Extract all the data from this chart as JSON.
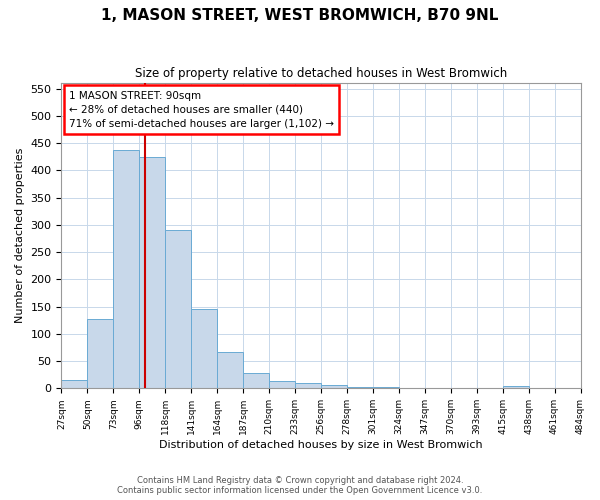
{
  "title": "1, MASON STREET, WEST BROMWICH, B70 9NL",
  "subtitle": "Size of property relative to detached houses in West Bromwich",
  "xlabel": "Distribution of detached houses by size in West Bromwich",
  "ylabel": "Number of detached properties",
  "footer_line1": "Contains HM Land Registry data © Crown copyright and database right 2024.",
  "footer_line2": "Contains public sector information licensed under the Open Government Licence v3.0.",
  "annotation_line1": "1 MASON STREET: 90sqm",
  "annotation_line2": "← 28% of detached houses are smaller (440)",
  "annotation_line3": "71% of semi-detached houses are larger (1,102) →",
  "bar_color": "#c8d8ea",
  "bar_edge_color": "#6aaad4",
  "grid_color": "#c8d8ea",
  "vline_color": "#cc0000",
  "bar_heights": [
    15,
    128,
    438,
    425,
    291,
    146,
    67,
    29,
    13,
    10,
    6,
    3,
    2,
    1,
    1,
    1,
    0,
    5,
    0,
    0
  ],
  "x_labels": [
    "27sqm",
    "50sqm",
    "73sqm",
    "96sqm",
    "118sqm",
    "141sqm",
    "164sqm",
    "187sqm",
    "210sqm",
    "233sqm",
    "256sqm",
    "278sqm",
    "301sqm",
    "324sqm",
    "347sqm",
    "370sqm",
    "393sqm",
    "415sqm",
    "438sqm",
    "461sqm",
    "484sqm"
  ],
  "ylim": [
    0,
    560
  ],
  "yticks": [
    0,
    50,
    100,
    150,
    200,
    250,
    300,
    350,
    400,
    450,
    500,
    550
  ],
  "vline_x": 2.74,
  "figsize": [
    6.0,
    5.0
  ],
  "dpi": 100
}
